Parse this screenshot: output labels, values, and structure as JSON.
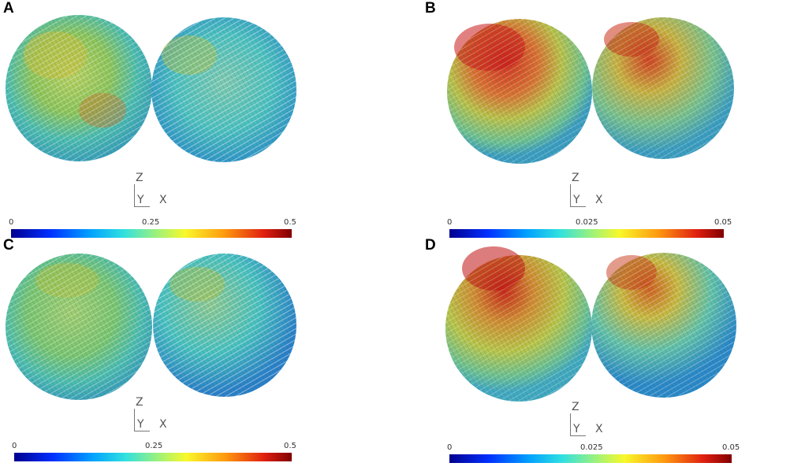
{
  "panels": [
    {
      "letter": "A",
      "colorbar": {
        "min": "0",
        "mid": "0.25",
        "max": "0.5"
      },
      "axes": {
        "z": "Z",
        "y": "Y",
        "x": "X"
      }
    },
    {
      "letter": "B",
      "colorbar": {
        "min": "0",
        "mid": "0.025",
        "max": "0.05"
      },
      "axes": {
        "z": "Z",
        "y": "Y",
        "x": "X"
      }
    },
    {
      "letter": "C",
      "colorbar": {
        "min": "0",
        "mid": "0.25",
        "max": "0.5"
      },
      "axes": {
        "z": "Z",
        "y": "Y",
        "x": "X"
      }
    },
    {
      "letter": "D",
      "colorbar": {
        "min": "0",
        "mid": "0.025",
        "max": "0.05"
      },
      "axes": {
        "z": "Z",
        "y": "Y",
        "x": "X"
      }
    }
  ],
  "colors": {
    "low": "#00008f",
    "mid": "#f8f82a",
    "high": "#800000"
  }
}
